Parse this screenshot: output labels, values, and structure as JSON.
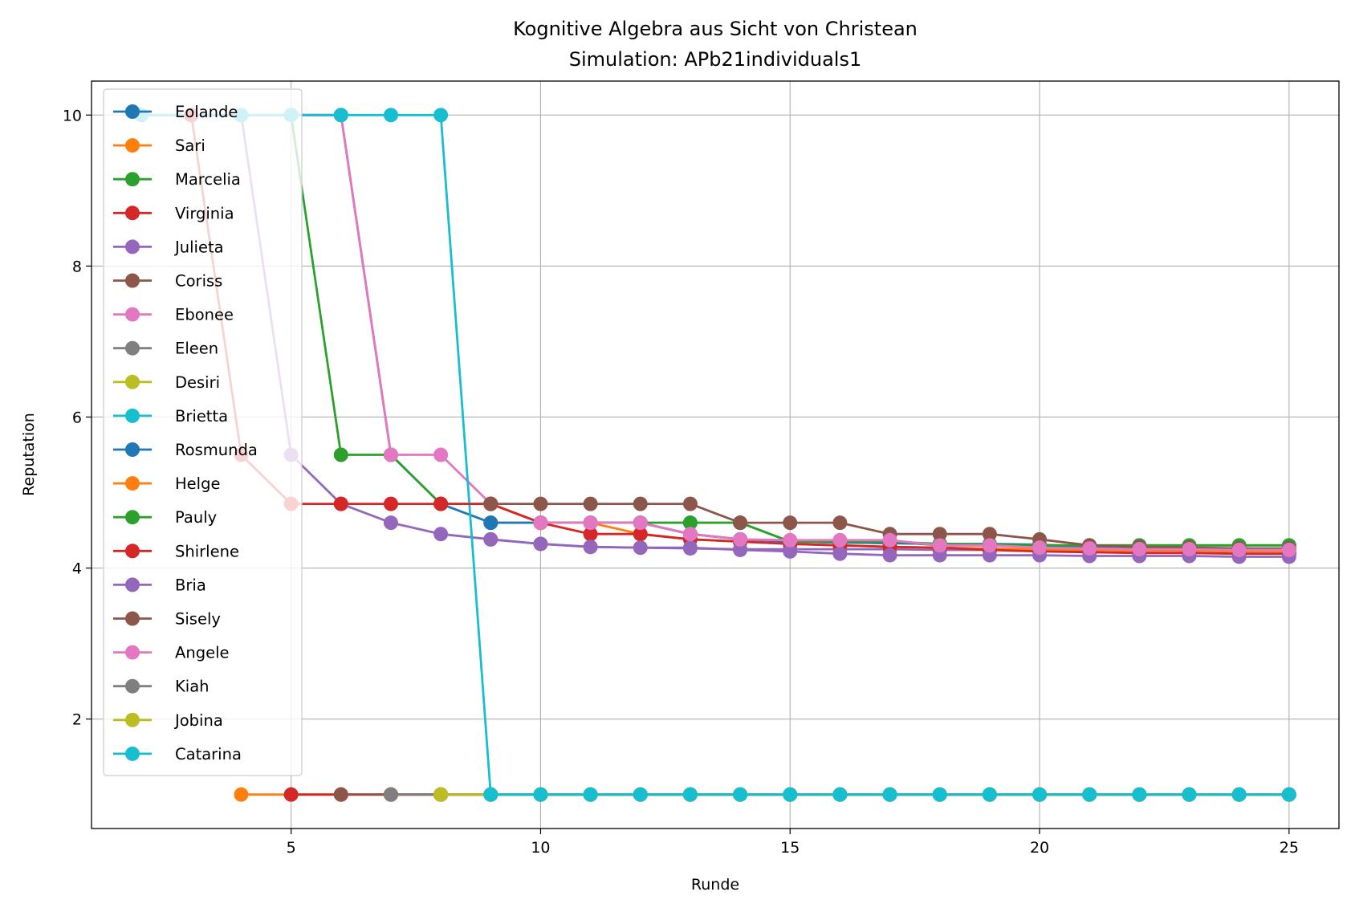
{
  "chart_data": {
    "type": "line",
    "title": "Kognitive Algebra aus Sicht von Christean",
    "subtitle": "Simulation: APb21individuals1",
    "xlabel": "Runde",
    "ylabel": "Reputation",
    "xlim": [
      1,
      26
    ],
    "ylim": [
      0.55,
      10.45
    ],
    "xticks": [
      5,
      10,
      15,
      20,
      25
    ],
    "yticks": [
      2,
      4,
      6,
      8,
      10
    ],
    "grid": true,
    "legend_position": "upper-left",
    "series": [
      {
        "name": "Eolande",
        "color": "#1f77b4",
        "x": [
          2,
          3,
          4,
          5,
          6,
          7,
          8,
          9,
          10,
          11,
          12,
          13,
          14,
          15,
          16,
          17,
          18,
          19,
          20,
          21,
          22,
          23,
          24,
          25
        ],
        "y": [
          10,
          10,
          10,
          10,
          10,
          5.5,
          4.85,
          4.6,
          4.6,
          4.6,
          4.6,
          4.45,
          4.38,
          4.35,
          4.34,
          4.33,
          4.32,
          4.32,
          4.31,
          4.28,
          4.27,
          4.26,
          4.26,
          4.25
        ]
      },
      {
        "name": "Sari",
        "color": "#ff7f0e",
        "x": [
          4,
          5,
          6,
          7,
          8,
          9,
          10,
          11,
          12,
          13,
          14,
          15,
          16,
          17,
          18,
          19,
          20,
          21,
          22,
          23,
          24,
          25
        ],
        "y": [
          1,
          1,
          1,
          1,
          1,
          1,
          1,
          1,
          1,
          1,
          1,
          1,
          1,
          1,
          1,
          1,
          1,
          1,
          1,
          1,
          1,
          1
        ]
      },
      {
        "name": "Marcelia",
        "color": "#2ca02c",
        "x": [
          5,
          6,
          7,
          8,
          9,
          10,
          11,
          12,
          13,
          14,
          15,
          16,
          17,
          18,
          19,
          20,
          21,
          22,
          23,
          24,
          25
        ],
        "y": [
          10,
          5.5,
          5.5,
          4.85,
          4.85,
          4.6,
          4.6,
          4.6,
          4.6,
          4.6,
          4.35,
          4.35,
          4.35,
          4.3,
          4.3,
          4.3,
          4.3,
          4.3,
          4.3,
          4.3,
          4.3
        ]
      },
      {
        "name": "Virginia",
        "color": "#d62728",
        "x": [
          5,
          6,
          7,
          8,
          9,
          10,
          11,
          12,
          13,
          14,
          15,
          16,
          17,
          18,
          19,
          20,
          21,
          22,
          23,
          24,
          25
        ],
        "y": [
          1,
          1,
          1,
          1,
          1,
          1,
          1,
          1,
          1,
          1,
          1,
          1,
          1,
          1,
          1,
          1,
          1,
          1,
          1,
          1,
          1
        ]
      },
      {
        "name": "Julieta",
        "color": "#9467bd",
        "x": [
          4,
          5,
          6,
          7,
          8,
          9,
          10,
          11,
          12,
          13,
          14,
          15,
          16,
          17,
          18,
          19,
          20,
          21,
          22,
          23,
          24,
          25
        ],
        "y": [
          10,
          5.5,
          4.85,
          4.6,
          4.45,
          4.38,
          4.32,
          4.28,
          4.27,
          4.26,
          4.25,
          4.25,
          4.25,
          4.25,
          4.24,
          4.24,
          4.24,
          4.24,
          4.24,
          4.23,
          4.23,
          4.22
        ]
      },
      {
        "name": "Coriss",
        "color": "#8c564b",
        "x": [
          6,
          7,
          8,
          9,
          10,
          11,
          12,
          13,
          14,
          15,
          16,
          17,
          18,
          19,
          20,
          21,
          22,
          23,
          24,
          25
        ],
        "y": [
          1,
          1,
          1,
          1,
          1,
          1,
          1,
          1,
          1,
          1,
          1,
          1,
          1,
          1,
          1,
          1,
          1,
          1,
          1,
          1
        ]
      },
      {
        "name": "Ebonee",
        "color": "#e377c2",
        "x": [
          5,
          6,
          7,
          8,
          9,
          10,
          11,
          12,
          13,
          14,
          15,
          16,
          17,
          18,
          19,
          20,
          21,
          22,
          23,
          24,
          25
        ],
        "y": [
          10,
          10,
          5.5,
          5.5,
          4.85,
          4.6,
          4.6,
          4.6,
          4.45,
          4.38,
          4.35,
          4.34,
          4.33,
          4.32,
          4.31,
          4.3,
          4.28,
          4.27,
          4.26,
          4.26,
          4.25
        ]
      },
      {
        "name": "Eleen",
        "color": "#7f7f7f",
        "x": [
          7,
          8,
          9,
          10,
          11,
          12,
          13,
          14,
          15,
          16,
          17,
          18,
          19,
          20,
          21,
          22,
          23,
          24,
          25
        ],
        "y": [
          1,
          1,
          1,
          1,
          1,
          1,
          1,
          1,
          1,
          1,
          1,
          1,
          1,
          1,
          1,
          1,
          1,
          1,
          1
        ]
      },
      {
        "name": "Desiri",
        "color": "#bcbd22",
        "x": [
          8,
          9,
          10,
          11,
          12,
          13,
          14,
          15,
          16,
          17,
          18,
          19,
          20,
          21,
          22,
          23,
          24,
          25
        ],
        "y": [
          1,
          1,
          1,
          1,
          1,
          1,
          1,
          1,
          1,
          1,
          1,
          1,
          1,
          1,
          1,
          1,
          1,
          1
        ]
      },
      {
        "name": "Brietta",
        "color": "#17becf",
        "x": [
          2,
          3,
          4,
          5,
          6,
          7,
          8,
          9,
          10,
          11,
          12,
          13,
          14,
          15,
          16,
          17,
          18,
          19,
          20,
          21,
          22,
          23,
          24,
          25
        ],
        "y": [
          10,
          10,
          10,
          10,
          10,
          10,
          10,
          1,
          1,
          1,
          1,
          1,
          1,
          1,
          1,
          1,
          1,
          1,
          1,
          1,
          1,
          1,
          1,
          1
        ]
      },
      {
        "name": "Rosmunda",
        "color": "#1f77b4",
        "x": [
          9,
          10,
          11,
          12,
          13,
          14,
          15,
          16,
          17,
          18,
          19,
          20,
          21,
          22,
          23,
          24,
          25
        ],
        "y": [
          4.6,
          4.6,
          4.6,
          4.6,
          4.45,
          4.38,
          4.35,
          4.34,
          4.33,
          4.32,
          4.31,
          4.3,
          4.28,
          4.27,
          4.26,
          4.26,
          4.25
        ]
      },
      {
        "name": "Helge",
        "color": "#ff7f0e",
        "x": [
          9,
          10,
          11,
          12,
          13,
          14,
          15,
          16,
          17,
          18,
          19,
          20,
          21,
          22,
          23,
          24,
          25
        ],
        "y": [
          4.85,
          4.6,
          4.6,
          4.45,
          4.38,
          4.35,
          4.32,
          4.3,
          4.28,
          4.27,
          4.26,
          4.25,
          4.24,
          4.23,
          4.23,
          4.22,
          4.22
        ]
      },
      {
        "name": "Pauly",
        "color": "#2ca02c",
        "x": [
          10,
          11,
          12,
          13,
          14,
          15,
          16,
          17,
          18,
          19,
          20,
          21,
          22,
          23,
          24,
          25
        ],
        "y": [
          4.6,
          4.6,
          4.6,
          4.6,
          4.6,
          4.35,
          4.35,
          4.35,
          4.32,
          4.31,
          4.3,
          4.3,
          4.3,
          4.3,
          4.3,
          4.3
        ]
      },
      {
        "name": "Shirlene",
        "color": "#d62728",
        "x": [
          3,
          4,
          5,
          6,
          7,
          8,
          9,
          10,
          11,
          12,
          13,
          14,
          15,
          16,
          17,
          18,
          19,
          20,
          21,
          22,
          23,
          24,
          25
        ],
        "y": [
          10,
          5.5,
          4.85,
          4.85,
          4.85,
          4.85,
          4.85,
          4.6,
          4.45,
          4.45,
          4.38,
          4.35,
          4.32,
          4.3,
          4.28,
          4.27,
          4.24,
          4.22,
          4.21,
          4.2,
          4.2,
          4.19,
          4.19
        ]
      },
      {
        "name": "Bria",
        "color": "#9467bd",
        "x": [
          9,
          10,
          11,
          12,
          13,
          14,
          15,
          16,
          17,
          18,
          19,
          20,
          21,
          22,
          23,
          24,
          25
        ],
        "y": [
          4.38,
          4.32,
          4.28,
          4.27,
          4.27,
          4.24,
          4.22,
          4.19,
          4.17,
          4.17,
          4.17,
          4.17,
          4.16,
          4.16,
          4.16,
          4.15,
          4.15
        ]
      },
      {
        "name": "Sisely",
        "color": "#8c564b",
        "x": [
          9,
          10,
          11,
          12,
          13,
          14,
          15,
          16,
          17,
          18,
          19,
          20,
          21,
          22,
          23,
          24,
          25
        ],
        "y": [
          4.85,
          4.85,
          4.85,
          4.85,
          4.85,
          4.6,
          4.6,
          4.6,
          4.45,
          4.45,
          4.45,
          4.38,
          4.3,
          4.28,
          4.27,
          4.26,
          4.26
        ]
      },
      {
        "name": "Angele",
        "color": "#e377c2",
        "x": [
          10,
          11,
          12,
          13,
          14,
          15,
          16,
          17,
          18,
          19,
          20,
          21,
          22,
          23,
          24,
          25
        ],
        "y": [
          4.6,
          4.6,
          4.6,
          4.45,
          4.38,
          4.37,
          4.37,
          4.37,
          4.3,
          4.3,
          4.27,
          4.26,
          4.25,
          4.25,
          4.24,
          4.24
        ]
      },
      {
        "name": "Kiah",
        "color": "#7f7f7f",
        "x": [
          10,
          11,
          12,
          13,
          14,
          15,
          16,
          17,
          18,
          19,
          20,
          21,
          22,
          23,
          24,
          25
        ],
        "y": [
          1,
          1,
          1,
          1,
          1,
          1,
          1,
          1,
          1,
          1,
          1,
          1,
          1,
          1,
          1,
          1
        ]
      },
      {
        "name": "Jobina",
        "color": "#bcbd22",
        "x": [
          10,
          11,
          12,
          13,
          14,
          15,
          16,
          17,
          18,
          19,
          20,
          21,
          22,
          23,
          24,
          25
        ],
        "y": [
          1,
          1,
          1,
          1,
          1,
          1,
          1,
          1,
          1,
          1,
          1,
          1,
          1,
          1,
          1,
          1
        ]
      },
      {
        "name": "Catarina",
        "color": "#17becf",
        "x": [
          9,
          10,
          11,
          12,
          13,
          14,
          15,
          16,
          17,
          18,
          19,
          20,
          21,
          22,
          23,
          24,
          25
        ],
        "y": [
          1,
          1,
          1,
          1,
          1,
          1,
          1,
          1,
          1,
          1,
          1,
          1,
          1,
          1,
          1,
          1,
          1
        ]
      }
    ]
  }
}
